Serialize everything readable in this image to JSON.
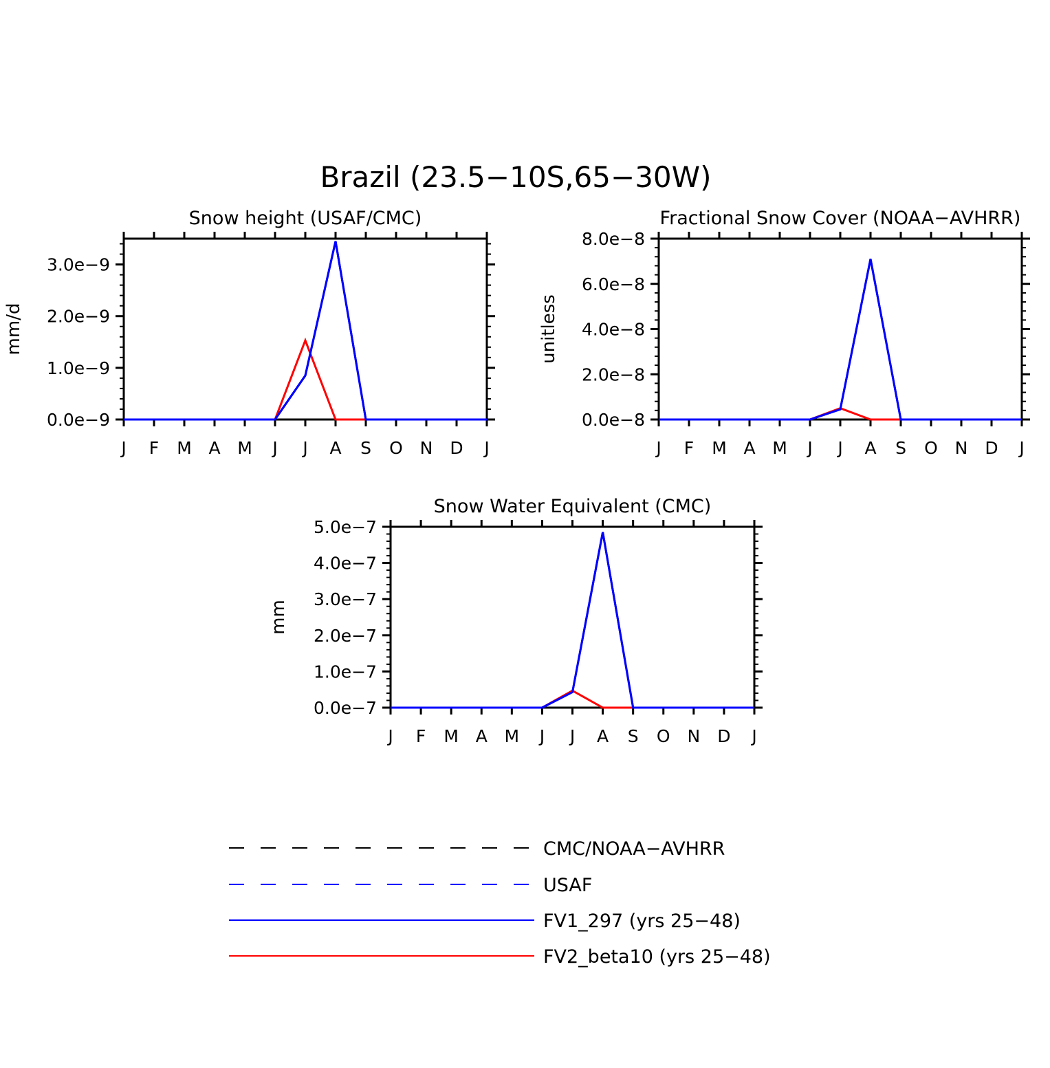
{
  "figure": {
    "title": "Brazil (23.5−10S,65−30W)"
  },
  "colors": {
    "fv1": "#0000ff",
    "fv2": "#ff0000",
    "cmc": "#000000",
    "usaf": "#0000ff",
    "axes": "#000000"
  },
  "chart_data": [
    {
      "type": "line",
      "title": "Snow height (USAF/CMC)",
      "ylabel": "mm/d",
      "xlabel": "",
      "categories": [
        "J",
        "F",
        "M",
        "A",
        "M",
        "J",
        "J",
        "A",
        "S",
        "O",
        "N",
        "D",
        "J"
      ],
      "ylim": [
        0,
        3.5e-09
      ],
      "yticks": [
        0,
        1e-09,
        2e-09,
        3e-09
      ],
      "yticklabels": [
        "0.0e−9",
        "1.0e−9",
        "2.0e−9",
        "3.0e−9"
      ],
      "series": [
        {
          "name": "FV1_297 (yrs 25–48)",
          "color": "#0000ff",
          "style": "solid",
          "values": [
            0,
            0,
            0,
            0,
            0,
            0,
            8.5e-10,
            3.45e-09,
            0,
            0,
            0,
            0,
            0
          ]
        },
        {
          "name": "FV2_beta10 (yrs 25–48)",
          "color": "#ff0000",
          "style": "solid",
          "values": [
            0,
            0,
            0,
            0,
            0,
            0,
            1.53e-09,
            0,
            0,
            0,
            0,
            0,
            0
          ]
        }
      ]
    },
    {
      "type": "line",
      "title": "Fractional Snow Cover (NOAA−AVHRR)",
      "ylabel": "unitless",
      "xlabel": "",
      "categories": [
        "J",
        "F",
        "M",
        "A",
        "M",
        "J",
        "J",
        "A",
        "S",
        "O",
        "N",
        "D",
        "J"
      ],
      "ylim": [
        0,
        8e-08
      ],
      "yticks": [
        0,
        2e-08,
        4e-08,
        6e-08,
        8e-08
      ],
      "yticklabels": [
        "0.0e−8",
        "2.0e−8",
        "4.0e−8",
        "6.0e−8",
        "8.0e−8"
      ],
      "series": [
        {
          "name": "FV1_297 (yrs 25–48)",
          "color": "#0000ff",
          "style": "solid",
          "values": [
            0,
            0,
            0,
            0,
            0,
            0,
            4.5e-09,
            7.1e-08,
            0,
            0,
            0,
            0,
            0
          ]
        },
        {
          "name": "FV2_beta10 (yrs 25–48)",
          "color": "#ff0000",
          "style": "solid",
          "values": [
            0,
            0,
            0,
            0,
            0,
            0,
            5e-09,
            0,
            0,
            0,
            0,
            0,
            0
          ]
        }
      ]
    },
    {
      "type": "line",
      "title": "Snow Water Equivalent (CMC)",
      "ylabel": "mm",
      "xlabel": "",
      "categories": [
        "J",
        "F",
        "M",
        "A",
        "M",
        "J",
        "J",
        "A",
        "S",
        "O",
        "N",
        "D",
        "J"
      ],
      "ylim": [
        0,
        5e-07
      ],
      "yticks": [
        0,
        1e-07,
        2e-07,
        3e-07,
        4e-07,
        5e-07
      ],
      "yticklabels": [
        "0.0e−7",
        "1.0e−7",
        "2.0e−7",
        "3.0e−7",
        "4.0e−7",
        "5.0e−7"
      ],
      "series": [
        {
          "name": "FV1_297 (yrs 25–48)",
          "color": "#0000ff",
          "style": "solid",
          "values": [
            0,
            0,
            0,
            0,
            0,
            0,
            4.3e-08,
            4.85e-07,
            0,
            0,
            0,
            0,
            0
          ]
        },
        {
          "name": "FV2_beta10 (yrs 25–48)",
          "color": "#ff0000",
          "style": "solid",
          "values": [
            0,
            0,
            0,
            0,
            0,
            0,
            4.7e-08,
            0,
            0,
            0,
            0,
            0,
            0
          ]
        }
      ]
    }
  ],
  "legend": {
    "placement": "bottom",
    "entries": [
      {
        "label": "CMC/NOAA−AVHRR",
        "color": "#000000",
        "style": "dashed"
      },
      {
        "label": "USAF",
        "color": "#0000ff",
        "style": "dashed"
      },
      {
        "label": "FV1_297 (yrs 25−48)",
        "color": "#0000ff",
        "style": "solid"
      },
      {
        "label": "FV2_beta10 (yrs 25−48)",
        "color": "#ff0000",
        "style": "solid"
      }
    ]
  }
}
